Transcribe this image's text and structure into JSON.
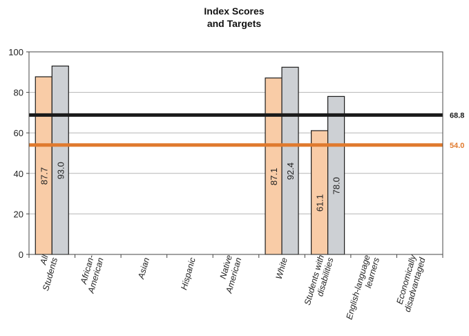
{
  "chart_data": {
    "type": "bar",
    "title": "Index Scores\nand Targets",
    "categories": [
      "All\nStudents",
      "African-\nAmerican",
      "Asian",
      "Hispanic",
      "Native\nAmerican",
      "White",
      "Students with\ndisabilities",
      "English-language\nlearners",
      "Economically\ndisadvantaged"
    ],
    "series": [
      {
        "values": [
          87.7,
          null,
          null,
          null,
          null,
          87.1,
          61.1,
          null,
          null
        ],
        "color": "#f9cca7"
      },
      {
        "values": [
          93.0,
          null,
          null,
          null,
          null,
          92.4,
          78.0,
          null,
          null
        ],
        "color": "#cdd0d4"
      }
    ],
    "value_labels": [
      [
        "87.7",
        null,
        null,
        null,
        null,
        "87.1",
        "61.1",
        null,
        null
      ],
      [
        "93.0",
        null,
        null,
        null,
        null,
        "92.4",
        "78.0",
        null,
        null
      ]
    ],
    "targets": [
      {
        "value": 68.8,
        "label": "68.8",
        "color": "#1a1a1a"
      },
      {
        "value": 54.0,
        "label": "54.0",
        "color": "#e07a2e"
      }
    ],
    "ylim": [
      0,
      100
    ],
    "yticks": [
      0,
      20,
      40,
      60,
      80,
      100
    ],
    "grid": true,
    "xlabel": "",
    "ylabel": ""
  }
}
